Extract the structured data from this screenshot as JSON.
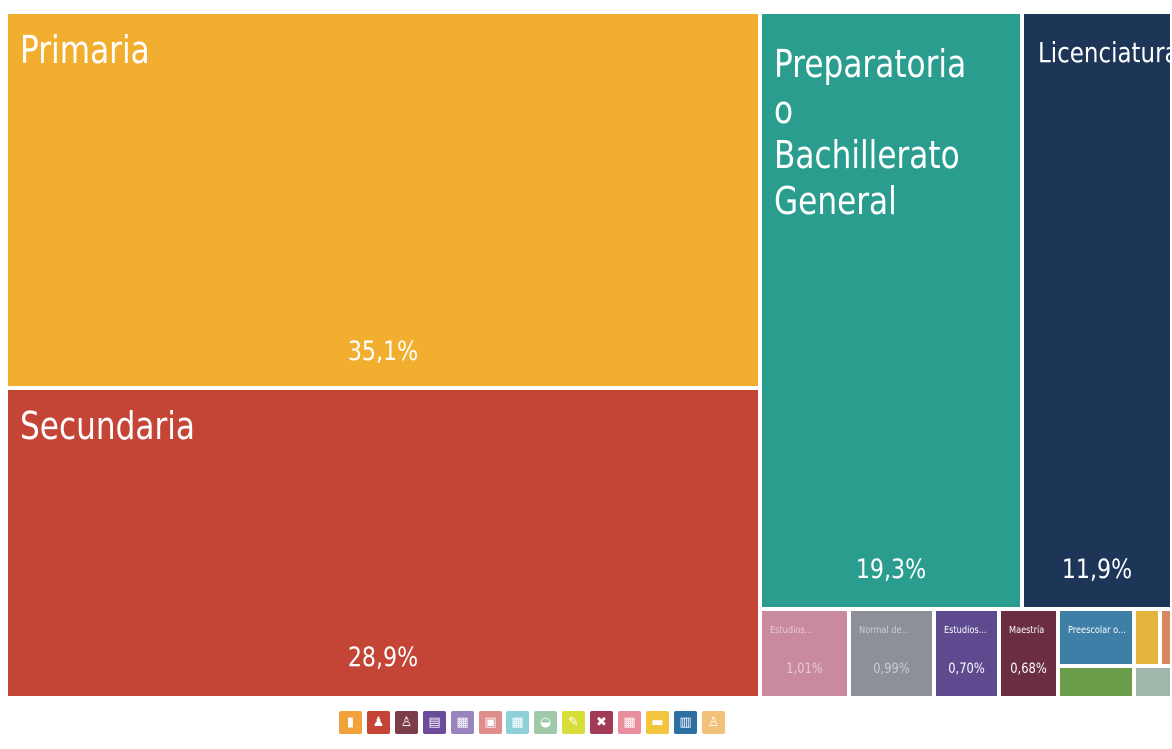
{
  "chart_data": {
    "type": "treemap",
    "items": [
      {
        "name": "Primaria",
        "value": 35.1,
        "value_label": "35,1%",
        "color": "#F2AE2E"
      },
      {
        "name": "Secundaria",
        "value": 28.9,
        "value_label": "28,9%",
        "color": "#C44536"
      },
      {
        "name": "Preparatoria o Bachillerato General",
        "value": 19.3,
        "value_label": "19,3%",
        "color": "#2A9D8F"
      },
      {
        "name": "Licenciatura",
        "value": 11.9,
        "value_label": "11,9%",
        "color": "#1D3557"
      },
      {
        "name": "Estudios...",
        "value": 1.01,
        "value_label": "1,01%",
        "color": "#C98AA0"
      },
      {
        "name": "Normal de...",
        "value": 0.99,
        "value_label": "0,99%",
        "color": "#8D8F99"
      },
      {
        "name": "Estudios...",
        "value": 0.7,
        "value_label": "0,70%",
        "color": "#5E4A8F"
      },
      {
        "name": "Maestría",
        "value": 0.68,
        "value_label": "0,68%",
        "color": "#6B2D44"
      },
      {
        "name": "Preescolar o...",
        "value": 0.5,
        "value_label": "",
        "color": "#3F7EA6"
      },
      {
        "name": "",
        "value": 0.25,
        "value_label": "",
        "color": "#6A9E4A"
      },
      {
        "name": "",
        "value": 0.15,
        "value_label": "",
        "color": "#E3B43E"
      },
      {
        "name": "",
        "value": 0.12,
        "value_label": "",
        "color": "#D88760"
      },
      {
        "name": "",
        "value": 0.1,
        "value_label": "",
        "color": "#9FB7AA"
      }
    ]
  },
  "legend": {
    "icons": [
      {
        "name": "book-icon",
        "color": "#F2A23A",
        "glyph": "▮"
      },
      {
        "name": "user-tie-icon",
        "color": "#C44536",
        "glyph": "♟"
      },
      {
        "name": "teacher-icon",
        "color": "#7D3C4A",
        "glyph": "♙"
      },
      {
        "name": "diploma-icon",
        "color": "#6B4C9A",
        "glyph": "▤"
      },
      {
        "name": "presentation-icon",
        "color": "#9A84C0",
        "glyph": "▦"
      },
      {
        "name": "certificate-icon",
        "color": "#E08D8D",
        "glyph": "▣"
      },
      {
        "name": "presentation-icon",
        "color": "#8FD0D8",
        "glyph": "▦"
      },
      {
        "name": "graduation-cap-icon",
        "color": "#9FC9A8",
        "glyph": "◒"
      },
      {
        "name": "pencil-icon",
        "color": "#D7DE3A",
        "glyph": "✎"
      },
      {
        "name": "tools-icon",
        "color": "#A23B55",
        "glyph": "✖"
      },
      {
        "name": "presentation-icon",
        "color": "#E88C9E",
        "glyph": "▦"
      },
      {
        "name": "briefcase-icon",
        "color": "#F2C53D",
        "glyph": "▬"
      },
      {
        "name": "teacher-board-icon",
        "color": "#2C6FA3",
        "glyph": "▥"
      },
      {
        "name": "family-icon",
        "color": "#F2C27A",
        "glyph": "♙"
      }
    ]
  }
}
